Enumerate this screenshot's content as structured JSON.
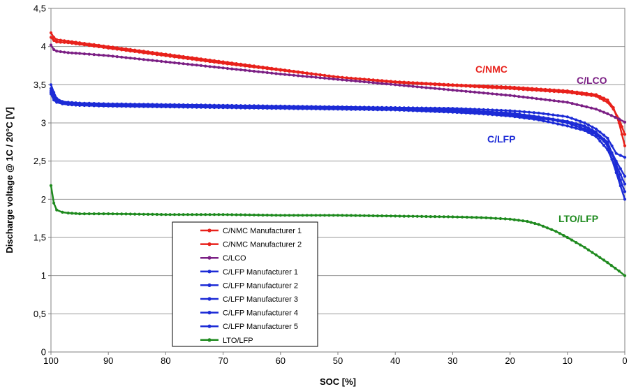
{
  "chart_data": {
    "type": "line",
    "title": "",
    "xlabel": "SOC [%]",
    "ylabel": "Discharge voltage @ 1C / 20°C  [V]",
    "xlim": [
      100,
      0
    ],
    "ylim": [
      0,
      4.5
    ],
    "x_reversed": true,
    "grid": true,
    "legend_position": "lower-left",
    "x_ticks": [
      100,
      90,
      80,
      70,
      60,
      50,
      40,
      30,
      20,
      10,
      0
    ],
    "x_tick_labels": [
      "100",
      "90",
      "80",
      "70",
      "60",
      "50",
      "40",
      "30",
      "20",
      "10",
      "0"
    ],
    "y_ticks": [
      0,
      0.5,
      1,
      1.5,
      2,
      2.5,
      3,
      3.5,
      4,
      4.5
    ],
    "y_tick_labels": [
      "0",
      "0,5",
      "1",
      "1,5",
      "2",
      "2,5",
      "3",
      "3,5",
      "4",
      "4,5"
    ],
    "annotations": [
      {
        "text": "C/NMC",
        "color": "#e8211b"
      },
      {
        "text": "C/LCO",
        "color": "#7b1f84"
      },
      {
        "text": "C/LFP",
        "color": "#1c2bd6"
      },
      {
        "text": "LTO/LFP",
        "color": "#1e8a1e"
      }
    ],
    "series": [
      {
        "name": "C/NMC Manufacturer 1",
        "color": "#e8211b",
        "x": [
          100,
          99.5,
          99,
          97,
          95,
          90,
          80,
          70,
          60,
          50,
          40,
          30,
          20,
          10,
          5,
          3,
          2,
          1,
          0.5,
          0
        ],
        "y": [
          4.18,
          4.12,
          4.09,
          4.07,
          4.05,
          4.0,
          3.9,
          3.8,
          3.7,
          3.6,
          3.54,
          3.5,
          3.47,
          3.42,
          3.37,
          3.3,
          3.2,
          3.0,
          2.85,
          2.7
        ]
      },
      {
        "name": "C/NMC Manufacturer 2",
        "color": "#e8211b",
        "x": [
          100,
          99.5,
          99,
          97,
          95,
          90,
          80,
          70,
          60,
          50,
          40,
          30,
          20,
          10,
          5,
          3,
          2,
          1,
          0.5,
          0
        ],
        "y": [
          4.12,
          4.08,
          4.06,
          4.05,
          4.03,
          3.98,
          3.88,
          3.78,
          3.69,
          3.6,
          3.53,
          3.49,
          3.45,
          3.4,
          3.35,
          3.27,
          3.18,
          3.05,
          2.95,
          2.85
        ]
      },
      {
        "name": "C/LCO",
        "color": "#7b1f84",
        "x": [
          100,
          99.5,
          99,
          97,
          95,
          90,
          80,
          70,
          60,
          50,
          40,
          30,
          20,
          10,
          5,
          3,
          1,
          0
        ],
        "y": [
          4.02,
          3.96,
          3.94,
          3.92,
          3.91,
          3.88,
          3.8,
          3.72,
          3.64,
          3.57,
          3.5,
          3.43,
          3.36,
          3.27,
          3.18,
          3.12,
          3.05,
          3.01
        ]
      },
      {
        "name": "C/LFP Manufacturer 1",
        "color": "#1c2bd6",
        "x": [
          100,
          99.5,
          99,
          98,
          97,
          95,
          90,
          80,
          70,
          60,
          50,
          40,
          30,
          20,
          15,
          10,
          7,
          5,
          3,
          1.5,
          0
        ],
        "y": [
          3.5,
          3.4,
          3.32,
          3.28,
          3.27,
          3.26,
          3.25,
          3.24,
          3.23,
          3.22,
          3.21,
          3.2,
          3.19,
          3.16,
          3.13,
          3.08,
          3.0,
          2.92,
          2.8,
          2.6,
          2.55
        ]
      },
      {
        "name": "C/LFP Manufacturer 2",
        "color": "#1c2bd6",
        "x": [
          100,
          99.5,
          99,
          98,
          97,
          95,
          90,
          80,
          70,
          60,
          50,
          40,
          30,
          20,
          15,
          10,
          7,
          5,
          3,
          1.5,
          0
        ],
        "y": [
          3.45,
          3.36,
          3.3,
          3.27,
          3.26,
          3.25,
          3.24,
          3.23,
          3.22,
          3.21,
          3.2,
          3.19,
          3.17,
          3.13,
          3.08,
          3.0,
          2.92,
          2.85,
          2.72,
          2.5,
          2.3
        ]
      },
      {
        "name": "C/LFP Manufacturer 3",
        "color": "#1c2bd6",
        "x": [
          100,
          99.5,
          99,
          98,
          97,
          95,
          90,
          80,
          70,
          60,
          50,
          40,
          30,
          20,
          15,
          10,
          7,
          5,
          3,
          1.5,
          0
        ],
        "y": [
          3.4,
          3.33,
          3.28,
          3.26,
          3.25,
          3.24,
          3.23,
          3.22,
          3.21,
          3.2,
          3.19,
          3.18,
          3.15,
          3.09,
          3.04,
          2.96,
          2.9,
          2.82,
          2.65,
          2.4,
          2.1
        ]
      },
      {
        "name": "C/LFP Manufacturer 4",
        "color": "#1c2bd6",
        "x": [
          100,
          99.5,
          99,
          98,
          97,
          95,
          90,
          80,
          70,
          60,
          50,
          40,
          30,
          20,
          15,
          10,
          7,
          5,
          3,
          1.5,
          0
        ],
        "y": [
          3.38,
          3.3,
          3.27,
          3.25,
          3.24,
          3.23,
          3.22,
          3.21,
          3.2,
          3.19,
          3.18,
          3.17,
          3.14,
          3.1,
          3.06,
          3.02,
          2.96,
          2.88,
          2.7,
          2.35,
          2.0
        ]
      },
      {
        "name": "C/LFP Manufacturer 5",
        "color": "#1c2bd6",
        "x": [
          100,
          99.5,
          99,
          98,
          97,
          95,
          90,
          80,
          70,
          60,
          50,
          40,
          30,
          20,
          15,
          10,
          7,
          5,
          3,
          1.5,
          0
        ],
        "y": [
          3.42,
          3.32,
          3.28,
          3.26,
          3.25,
          3.24,
          3.23,
          3.22,
          3.21,
          3.2,
          3.19,
          3.18,
          3.16,
          3.12,
          3.08,
          3.02,
          2.95,
          2.87,
          2.75,
          2.45,
          2.2
        ]
      },
      {
        "name": "LTO/LFP",
        "color": "#1e8a1e",
        "x": [
          100,
          99.5,
          99,
          98,
          97,
          95,
          90,
          80,
          70,
          60,
          50,
          40,
          30,
          25,
          20,
          17,
          15,
          12,
          10,
          7,
          5,
          3,
          1,
          0
        ],
        "y": [
          2.18,
          1.95,
          1.86,
          1.83,
          1.82,
          1.81,
          1.81,
          1.8,
          1.8,
          1.79,
          1.79,
          1.78,
          1.77,
          1.76,
          1.74,
          1.71,
          1.67,
          1.58,
          1.5,
          1.37,
          1.27,
          1.17,
          1.06,
          1.0
        ]
      }
    ]
  }
}
